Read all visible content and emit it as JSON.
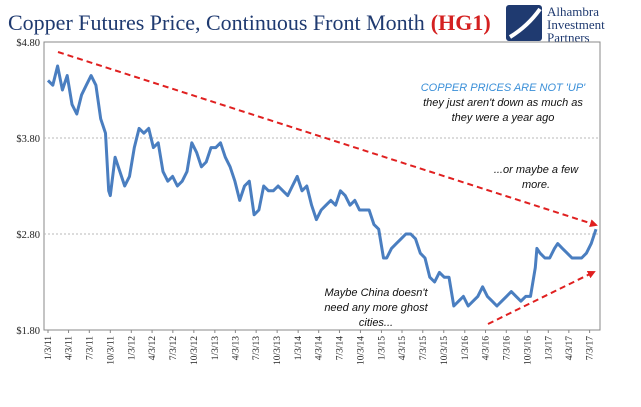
{
  "header": {
    "title": "Copper Futures Price, Continuous Front Month",
    "title_code_open": "(",
    "title_code": "HG1",
    "title_code_close": ")"
  },
  "logo": {
    "line1": "Alhambra",
    "line2": "Investment",
    "line3": "Partners"
  },
  "colors": {
    "series": "#4a7ec0",
    "arrow": "#e02020",
    "title": "#1f3a70",
    "accent_note": "#3a8fd8",
    "grid": "#b8b8b8",
    "background": "#ffffff"
  },
  "annotations": {
    "top_right": {
      "lead": "COPPER PRICES ARE NOT 'UP'",
      "line2": "they just aren't down as much as",
      "line3": "they were a year ago"
    },
    "right": {
      "line1": "...or maybe a few",
      "line2": "more."
    },
    "bottom": {
      "line1": "Maybe China doesn't",
      "line2": "need any more ghost",
      "line3": "cities..."
    }
  },
  "chart_data": {
    "type": "line",
    "title": "Copper Futures Price, Continuous Front Month (HG1)",
    "xlabel": "",
    "ylabel": "",
    "ylim": [
      1.8,
      4.8
    ],
    "yticks": [
      "$1.80",
      "$2.80",
      "$3.80",
      "$4.80"
    ],
    "grid": "horizontal",
    "xticks": [
      "1/3/11",
      "4/3/11",
      "7/3/11",
      "10/3/11",
      "1/3/12",
      "4/3/12",
      "7/3/12",
      "10/3/12",
      "1/3/13",
      "4/3/13",
      "7/3/13",
      "10/3/13",
      "1/3/14",
      "4/3/14",
      "7/3/14",
      "10/3/14",
      "1/3/15",
      "4/3/15",
      "7/3/15",
      "10/3/15",
      "1/3/16",
      "4/3/16",
      "7/3/16",
      "10/3/16",
      "1/3/17",
      "4/3/17",
      "7/3/17"
    ],
    "series": [
      {
        "x": [
          "2011-01-03",
          "2011-01-24",
          "2011-02-14",
          "2011-03-07",
          "2011-03-28",
          "2011-04-18",
          "2011-05-09",
          "2011-05-30",
          "2011-06-20",
          "2011-07-11",
          "2011-08-01",
          "2011-08-22",
          "2011-09-12",
          "2011-09-26",
          "2011-10-03",
          "2011-10-24",
          "2011-11-14",
          "2011-12-05",
          "2011-12-26",
          "2012-01-16",
          "2012-02-06",
          "2012-02-27",
          "2012-03-19",
          "2012-04-09",
          "2012-04-30",
          "2012-05-21",
          "2012-06-11",
          "2012-07-02",
          "2012-07-23",
          "2012-08-13",
          "2012-09-03",
          "2012-09-24",
          "2012-10-15",
          "2012-11-05",
          "2012-11-26",
          "2012-12-17",
          "2013-01-07",
          "2013-01-28",
          "2013-02-18",
          "2013-03-11",
          "2013-04-01",
          "2013-04-22",
          "2013-05-13",
          "2013-06-03",
          "2013-06-24",
          "2013-07-15",
          "2013-08-05",
          "2013-08-26",
          "2013-09-16",
          "2013-10-07",
          "2013-10-28",
          "2013-11-18",
          "2013-12-09",
          "2013-12-30",
          "2014-01-20",
          "2014-02-10",
          "2014-03-03",
          "2014-03-24",
          "2014-04-14",
          "2014-05-05",
          "2014-05-26",
          "2014-06-16",
          "2014-07-07",
          "2014-07-28",
          "2014-08-18",
          "2014-09-08",
          "2014-09-29",
          "2014-10-20",
          "2014-11-10",
          "2014-12-01",
          "2014-12-22",
          "2015-01-12",
          "2015-01-26",
          "2015-02-16",
          "2015-03-09",
          "2015-03-30",
          "2015-04-20",
          "2015-05-11",
          "2015-06-01",
          "2015-06-22",
          "2015-07-13",
          "2015-08-03",
          "2015-08-24",
          "2015-09-14",
          "2015-10-05",
          "2015-10-26",
          "2015-11-16",
          "2015-12-07",
          "2015-12-28",
          "2016-01-18",
          "2016-02-08",
          "2016-02-29",
          "2016-03-21",
          "2016-04-11",
          "2016-05-02",
          "2016-05-23",
          "2016-06-13",
          "2016-07-04",
          "2016-07-25",
          "2016-08-15",
          "2016-09-05",
          "2016-09-26",
          "2016-10-17",
          "2016-11-07",
          "2016-11-14",
          "2016-11-28",
          "2016-12-19",
          "2017-01-09",
          "2017-01-30",
          "2017-02-13",
          "2017-03-06",
          "2017-03-27",
          "2017-04-17",
          "2017-05-08",
          "2017-05-29",
          "2017-06-19",
          "2017-07-10",
          "2017-07-31"
        ],
        "values": [
          4.4,
          4.35,
          4.55,
          4.3,
          4.45,
          4.15,
          4.05,
          4.25,
          4.35,
          4.45,
          4.35,
          4.0,
          3.85,
          3.25,
          3.2,
          3.6,
          3.45,
          3.3,
          3.4,
          3.7,
          3.9,
          3.85,
          3.9,
          3.7,
          3.75,
          3.45,
          3.35,
          3.4,
          3.3,
          3.35,
          3.45,
          3.75,
          3.65,
          3.5,
          3.55,
          3.7,
          3.7,
          3.75,
          3.6,
          3.5,
          3.35,
          3.15,
          3.3,
          3.35,
          3.0,
          3.05,
          3.3,
          3.25,
          3.25,
          3.3,
          3.25,
          3.2,
          3.3,
          3.4,
          3.25,
          3.3,
          3.1,
          2.95,
          3.05,
          3.1,
          3.15,
          3.1,
          3.25,
          3.2,
          3.1,
          3.15,
          3.05,
          3.05,
          3.05,
          2.9,
          2.85,
          2.55,
          2.55,
          2.65,
          2.7,
          2.75,
          2.8,
          2.8,
          2.75,
          2.6,
          2.55,
          2.35,
          2.3,
          2.4,
          2.35,
          2.35,
          2.05,
          2.1,
          2.15,
          2.05,
          2.1,
          2.15,
          2.25,
          2.15,
          2.1,
          2.05,
          2.1,
          2.15,
          2.2,
          2.15,
          2.1,
          2.15,
          2.15,
          2.45,
          2.65,
          2.6,
          2.55,
          2.55,
          2.65,
          2.7,
          2.65,
          2.6,
          2.55,
          2.55,
          2.55,
          2.6,
          2.7,
          2.85
        ]
      }
    ]
  }
}
